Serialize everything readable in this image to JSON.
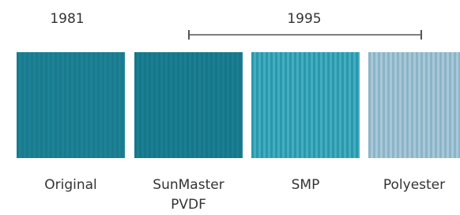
{
  "years": {
    "left": "1981",
    "right": "1995"
  },
  "swatches": [
    {
      "label": "Original"
    },
    {
      "label": "SunMaster\nPVDF"
    },
    {
      "label": "SMP"
    },
    {
      "label": "Polyester"
    }
  ]
}
